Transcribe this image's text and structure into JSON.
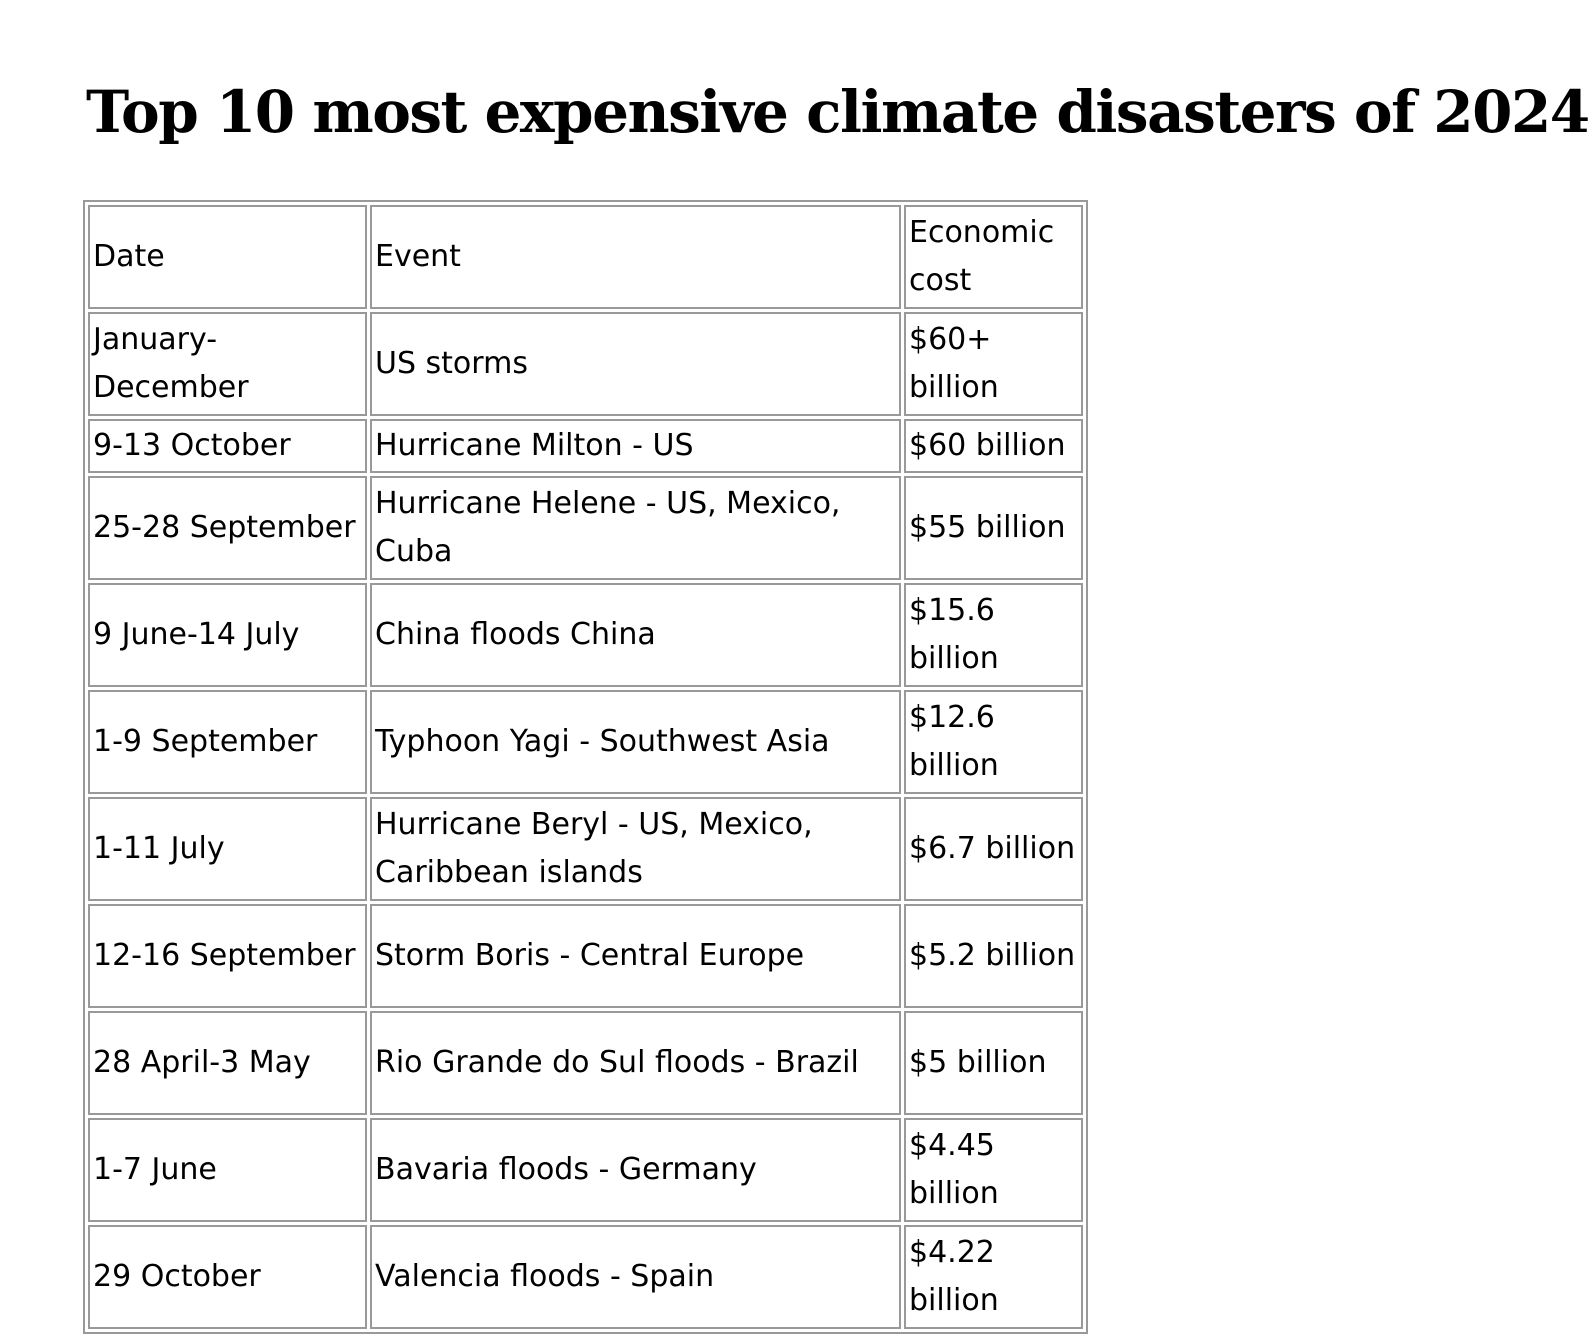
{
  "title": "Top 10 most expensive climate disasters of 2024",
  "table": {
    "headers": {
      "date": "Date",
      "event": "Event",
      "cost": "Economic cost"
    },
    "rows": [
      {
        "date": "January-December",
        "event": "US storms",
        "cost": "$60+ billion"
      },
      {
        "date": "9-13 October",
        "event": "Hurricane Milton - US",
        "cost": "$60 billion"
      },
      {
        "date": "25-28 September",
        "event": "Hurricane Helene -  US, Mexico, Cuba",
        "cost": "$55 billion"
      },
      {
        "date": "9 June-14 July",
        "event": "China floods China",
        "cost": "$15.6 billion"
      },
      {
        "date": "1-9 September",
        "event": "Typhoon Yagi - Southwest Asia",
        "cost": "$12.6 billion"
      },
      {
        "date": "1-11 July",
        "event": "Hurricane Beryl - US, Mexico, Caribbean islands",
        "cost": "$6.7 billion"
      },
      {
        "date": "12-16 September",
        "event": "Storm Boris - Central Europe",
        "cost": "$5.2 billion"
      },
      {
        "date": "28 April-3 May",
        "event": "Rio Grande do Sul floods - Brazil",
        "cost": "$5 billion"
      },
      {
        "date": "1-7 June",
        "event": "Bavaria floods - Germany",
        "cost": "$4.45 billion"
      },
      {
        "date": "29 October",
        "event": "Valencia  floods - Spain",
        "cost": "$4.22 billion"
      }
    ]
  }
}
